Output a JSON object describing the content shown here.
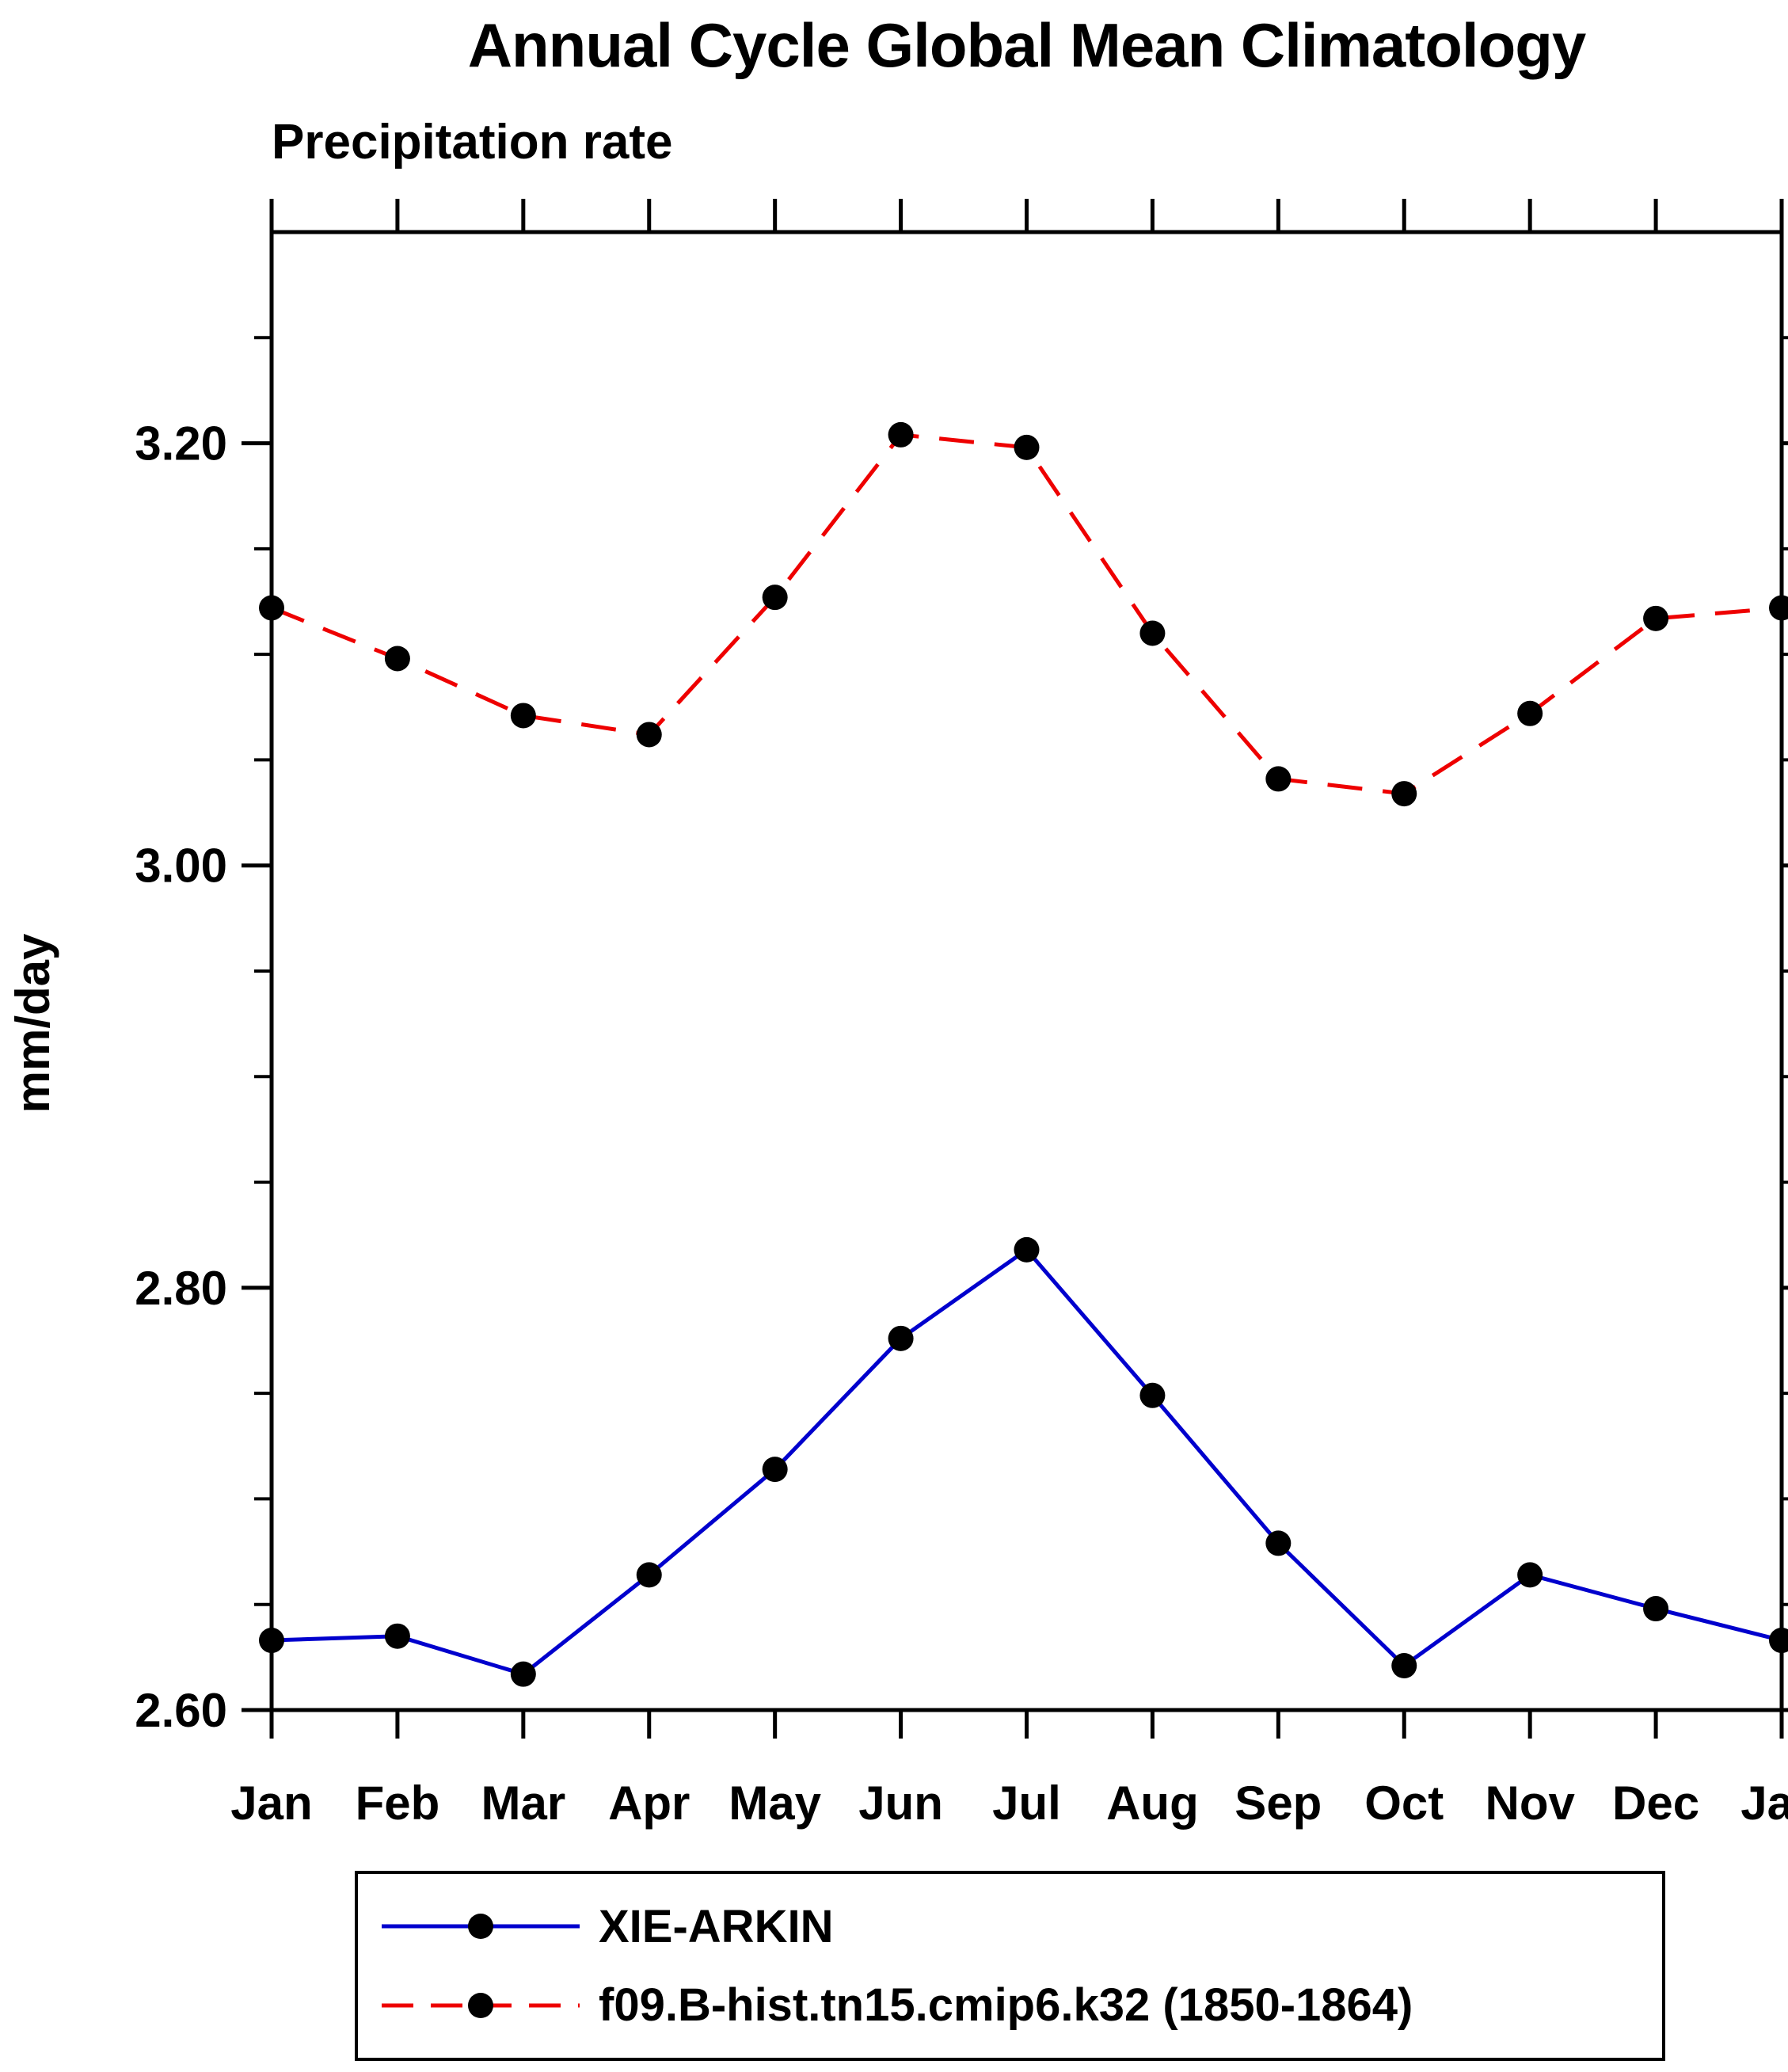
{
  "chart_data": {
    "type": "line",
    "title": "Annual Cycle Global Mean Climatology",
    "subtitle": "Precipitation rate",
    "ylabel": "mm/day",
    "xlabel": "",
    "categories": [
      "Jan",
      "Feb",
      "Mar",
      "Apr",
      "May",
      "Jun",
      "Jul",
      "Aug",
      "Sep",
      "Oct",
      "Nov",
      "Dec",
      "Jan"
    ],
    "ylim": [
      2.6,
      3.3
    ],
    "yticks_major": [
      2.6,
      2.8,
      3.0,
      3.2
    ],
    "ytick_labels": [
      "2.60",
      "2.80",
      "3.00",
      "3.20"
    ],
    "yminor_step": 0.05,
    "grid": false,
    "legend_position": "bottom",
    "series": [
      {
        "name": "XIE-ARKIN",
        "color": "#0000cd",
        "style": "solid",
        "marker": "circle",
        "marker_color": "#000000",
        "values": [
          2.633,
          2.635,
          2.617,
          2.664,
          2.714,
          2.776,
          2.818,
          2.749,
          2.679,
          2.621,
          2.664,
          2.648,
          2.633
        ]
      },
      {
        "name": "f09.B-hist.tn15.cmip6.k32 (1850-1864)",
        "color": "#ee0000",
        "style": "dashed",
        "marker": "circle",
        "marker_color": "#000000",
        "values": [
          3.122,
          3.098,
          3.071,
          3.062,
          3.127,
          3.204,
          3.198,
          3.11,
          3.041,
          3.034,
          3.072,
          3.117,
          3.122
        ]
      }
    ]
  }
}
